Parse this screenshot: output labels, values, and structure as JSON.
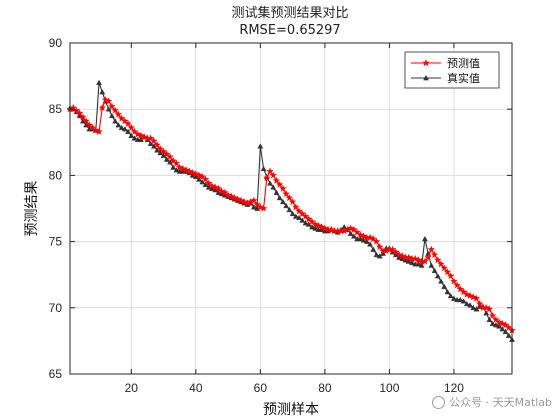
{
  "chart_data": {
    "type": "line",
    "title": "测试集预测结果对比",
    "subtitle": "RMSE=0.65297",
    "xlabel": "预测样本",
    "ylabel": "预测结果",
    "xlim": [
      1,
      138
    ],
    "ylim": [
      65,
      90
    ],
    "xticks": [
      20,
      40,
      60,
      80,
      100,
      120
    ],
    "yticks": [
      65,
      70,
      75,
      80,
      85,
      90
    ],
    "grid": true,
    "legend": "top-right",
    "x_start": 1,
    "series": [
      {
        "name": "预测值",
        "color": "#ff0000",
        "marker": "star",
        "values": [
          85.0,
          85.1,
          84.9,
          84.7,
          84.4,
          84.1,
          83.8,
          83.6,
          83.4,
          83.3,
          85.1,
          85.7,
          85.6,
          85.2,
          84.9,
          84.6,
          84.3,
          84.1,
          83.9,
          83.6,
          83.3,
          83.1,
          83.0,
          82.9,
          82.8,
          82.8,
          82.6,
          82.3,
          82.0,
          81.8,
          81.6,
          81.4,
          81.1,
          80.9,
          80.6,
          80.5,
          80.4,
          80.3,
          80.2,
          80.1,
          80.0,
          79.9,
          79.7,
          79.4,
          79.2,
          79.1,
          79.0,
          78.8,
          78.7,
          78.5,
          78.4,
          78.3,
          78.2,
          78.1,
          78.0,
          77.9,
          78.0,
          78.1,
          77.8,
          77.6,
          77.5,
          79.8,
          80.3,
          80.0,
          79.6,
          79.3,
          79.0,
          78.6,
          78.3,
          78.0,
          77.6,
          77.3,
          77.1,
          76.9,
          76.7,
          76.5,
          76.3,
          76.2,
          76.1,
          76.0,
          75.9,
          75.9,
          75.8,
          75.8,
          75.8,
          75.8,
          75.9,
          76.0,
          75.9,
          75.7,
          75.5,
          75.4,
          75.3,
          75.3,
          75.2,
          75.0,
          74.6,
          74.3,
          74.3,
          74.4,
          74.4,
          74.2,
          74.0,
          73.9,
          73.8,
          73.8,
          73.7,
          73.7,
          73.6,
          73.5,
          73.5,
          73.8,
          74.4,
          74.0,
          73.6,
          73.3,
          73.0,
          72.7,
          72.4,
          72.0,
          71.7,
          71.4,
          71.2,
          71.0,
          70.9,
          70.8,
          70.7,
          70.3,
          70.0,
          70.0,
          69.9,
          69.4,
          69.1,
          68.9,
          68.8,
          68.7,
          68.5,
          68.3
        ]
      },
      {
        "name": "真实值",
        "color": "#333333",
        "marker": "triangle",
        "values": [
          85.1,
          85.0,
          84.8,
          84.5,
          84.1,
          83.8,
          83.5,
          83.5,
          83.4,
          87.0,
          86.3,
          85.6,
          85.0,
          84.5,
          84.1,
          83.8,
          83.6,
          83.5,
          83.3,
          83.0,
          82.8,
          82.7,
          82.7,
          82.9,
          82.7,
          82.4,
          82.2,
          81.9,
          81.7,
          81.5,
          81.2,
          81.0,
          80.6,
          80.4,
          80.3,
          80.3,
          80.3,
          80.2,
          80.0,
          79.9,
          79.7,
          79.5,
          79.3,
          79.1,
          79.0,
          78.9,
          78.7,
          78.6,
          78.5,
          78.4,
          78.3,
          78.2,
          78.1,
          78.0,
          77.9,
          77.8,
          77.9,
          77.6,
          77.5,
          82.2,
          80.5,
          79.9,
          79.4,
          79.1,
          78.7,
          78.3,
          78.0,
          77.7,
          77.4,
          77.1,
          76.9,
          76.8,
          76.6,
          76.4,
          76.3,
          76.1,
          76.0,
          75.9,
          75.9,
          75.8,
          75.8,
          75.9,
          75.8,
          75.7,
          75.9,
          76.1,
          75.9,
          75.6,
          75.4,
          75.2,
          75.2,
          75.1,
          75.0,
          74.8,
          74.4,
          74.0,
          73.9,
          74.1,
          74.5,
          74.5,
          74.2,
          74.0,
          73.8,
          73.7,
          73.6,
          73.5,
          73.4,
          73.3,
          73.3,
          73.2,
          75.2,
          74.1,
          73.2,
          72.8,
          72.4,
          72.0,
          71.6,
          71.2,
          70.9,
          70.7,
          70.6,
          70.6,
          70.5,
          70.3,
          70.2,
          70.0,
          69.9,
          70.1,
          70.1,
          69.6,
          69.1,
          68.8,
          68.7,
          68.6,
          68.4,
          68.2,
          67.9,
          67.6
        ]
      }
    ]
  },
  "watermark": {
    "text": "公众号 · 天天Matlab",
    "icon": "wechat-icon"
  }
}
